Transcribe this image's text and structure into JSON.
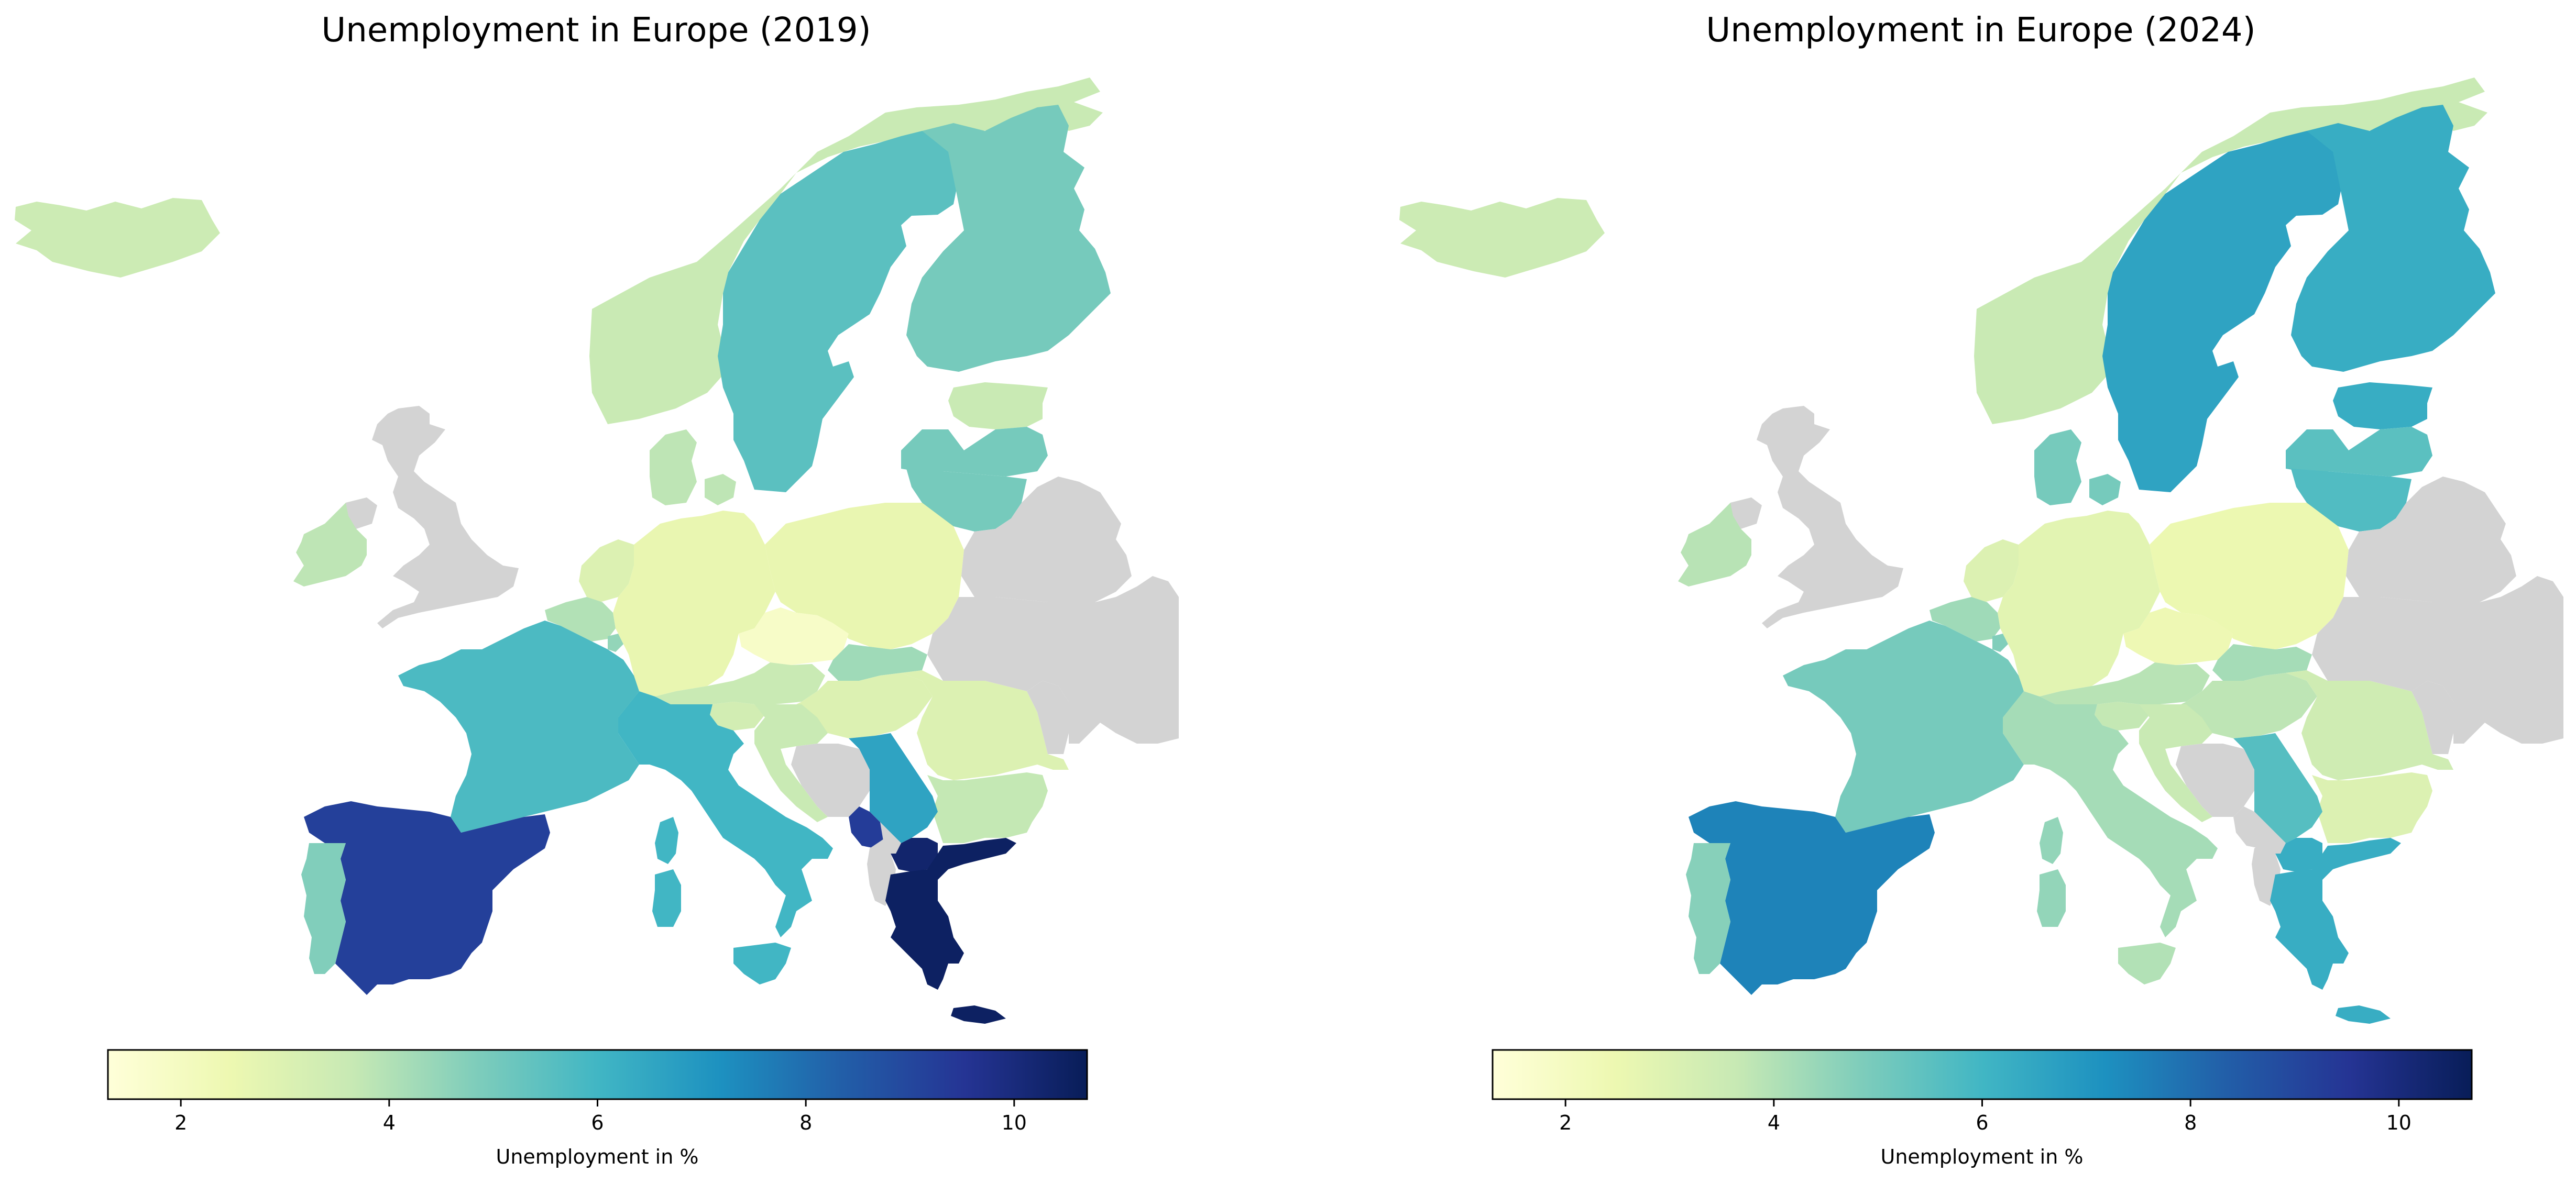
{
  "figure": {
    "panels": [
      {
        "title": "Unemployment in Europe (2019)",
        "colorbar": {
          "label": "Unemployment in %",
          "ticks": [
            "2",
            "4",
            "6",
            "8",
            "10"
          ]
        },
        "countries": [
          {
            "name": "Iceland",
            "value": 3.5
          },
          {
            "name": "Norway",
            "value": 3.6
          },
          {
            "name": "Sweden",
            "value": 5.5
          },
          {
            "name": "Finland",
            "value": 5.0
          },
          {
            "name": "Estonia",
            "value": 3.6
          },
          {
            "name": "Latvia",
            "value": 5.0
          },
          {
            "name": "Lithuania",
            "value": 5.0
          },
          {
            "name": "Denmark",
            "value": 3.8
          },
          {
            "name": "Denmark (Zealand)",
            "value": 3.8
          },
          {
            "name": "Ireland",
            "value": 3.8
          },
          {
            "name": "United Kingdom",
            "value": null
          },
          {
            "name": "Northern Ireland",
            "value": null
          },
          {
            "name": "Netherlands",
            "value": 3.0
          },
          {
            "name": "Belgium",
            "value": 4.0
          },
          {
            "name": "Luxembourg",
            "value": 4.5
          },
          {
            "name": "Germany",
            "value": 2.6
          },
          {
            "name": "Poland",
            "value": 2.6
          },
          {
            "name": "Czechia",
            "value": 1.8
          },
          {
            "name": "Slovakia",
            "value": 4.3
          },
          {
            "name": "Austria",
            "value": 3.6
          },
          {
            "name": "Switzerland",
            "value": 3.6
          },
          {
            "name": "Slovenia",
            "value": 3.3
          },
          {
            "name": "Hungary",
            "value": 3.0
          },
          {
            "name": "Croatia",
            "value": 3.6
          },
          {
            "name": "Romania",
            "value": 3.0
          },
          {
            "name": "Bulgaria",
            "value": 3.7
          },
          {
            "name": "Serbia",
            "value": 6.6
          },
          {
            "name": "Montenegro",
            "value": 9.3
          },
          {
            "name": "North Macedonia",
            "value": 10.3
          },
          {
            "name": "Bosnia and Herzegovina",
            "value": null
          },
          {
            "name": "Albania",
            "value": null
          },
          {
            "name": "Kosovo",
            "value": null
          },
          {
            "name": "Greece",
            "value": 10.5
          },
          {
            "name": "Crete",
            "value": 10.5
          },
          {
            "name": "France",
            "value": 5.8
          },
          {
            "name": "Corsica",
            "value": 6.0
          },
          {
            "name": "Sardinia",
            "value": 6.0
          },
          {
            "name": "Sicily",
            "value": 6.0
          },
          {
            "name": "Italy",
            "value": 6.0
          },
          {
            "name": "Spain",
            "value": 9.2
          },
          {
            "name": "Portugal",
            "value": 4.8
          },
          {
            "name": "Belarus",
            "value": null
          },
          {
            "name": "Ukraine",
            "value": null
          },
          {
            "name": "Moldova",
            "value": null
          }
        ]
      },
      {
        "title": "Unemployment in Europe (2024)",
        "colorbar": {
          "label": "Unemployment in %",
          "ticks": [
            "2",
            "4",
            "6",
            "8",
            "10"
          ]
        },
        "countries": [
          {
            "name": "Iceland",
            "value": 3.5
          },
          {
            "name": "Norway",
            "value": 3.6
          },
          {
            "name": "Sweden",
            "value": 6.6
          },
          {
            "name": "Finland",
            "value": 6.3
          },
          {
            "name": "Estonia",
            "value": 6.3
          },
          {
            "name": "Latvia",
            "value": 5.5
          },
          {
            "name": "Lithuania",
            "value": 5.7
          },
          {
            "name": "Denmark",
            "value": 5.0
          },
          {
            "name": "Denmark (Zealand)",
            "value": 5.0
          },
          {
            "name": "Ireland",
            "value": 3.9
          },
          {
            "name": "United Kingdom",
            "value": null
          },
          {
            "name": "Northern Ireland",
            "value": null
          },
          {
            "name": "Netherlands",
            "value": 3.0
          },
          {
            "name": "Belgium",
            "value": 4.3
          },
          {
            "name": "Luxembourg",
            "value": 4.8
          },
          {
            "name": "Germany",
            "value": 2.8
          },
          {
            "name": "Poland",
            "value": 2.5
          },
          {
            "name": "Czechia",
            "value": 2.4
          },
          {
            "name": "Slovakia",
            "value": 4.2
          },
          {
            "name": "Austria",
            "value": 3.9
          },
          {
            "name": "Switzerland",
            "value": 4.0
          },
          {
            "name": "Slovenia",
            "value": 3.7
          },
          {
            "name": "Hungary",
            "value": 3.8
          },
          {
            "name": "Croatia",
            "value": 3.6
          },
          {
            "name": "Romania",
            "value": 3.4
          },
          {
            "name": "Bulgaria",
            "value": 3.0
          },
          {
            "name": "Serbia",
            "value": 5.6
          },
          {
            "name": "Montenegro",
            "value": null
          },
          {
            "name": "North Macedonia",
            "value": 6.3
          },
          {
            "name": "Bosnia and Herzegovina",
            "value": null
          },
          {
            "name": "Albania",
            "value": null
          },
          {
            "name": "Kosovo",
            "value": null
          },
          {
            "name": "Greece",
            "value": 6.3
          },
          {
            "name": "Crete",
            "value": 6.3
          },
          {
            "name": "France",
            "value": 5.0
          },
          {
            "name": "Corsica",
            "value": 4.5
          },
          {
            "name": "Sardinia",
            "value": 4.5
          },
          {
            "name": "Sicily",
            "value": 4.0
          },
          {
            "name": "Italy",
            "value": 4.2
          },
          {
            "name": "Spain",
            "value": 7.5
          },
          {
            "name": "Portugal",
            "value": 4.7
          },
          {
            "name": "Belarus",
            "value": null
          },
          {
            "name": "Ukraine",
            "value": null
          },
          {
            "name": "Moldova",
            "value": null
          }
        ]
      }
    ],
    "colormap": {
      "name": "YlGnBu",
      "vmin": 1.3,
      "vmax": 10.7,
      "stops": [
        "#ffffd9",
        "#edf8b1",
        "#c7e9b4",
        "#7fcdbb",
        "#41b6c4",
        "#1d91c0",
        "#225ea8",
        "#253494",
        "#081d58"
      ],
      "missing_color": "#d3d3d3"
    }
  }
}
